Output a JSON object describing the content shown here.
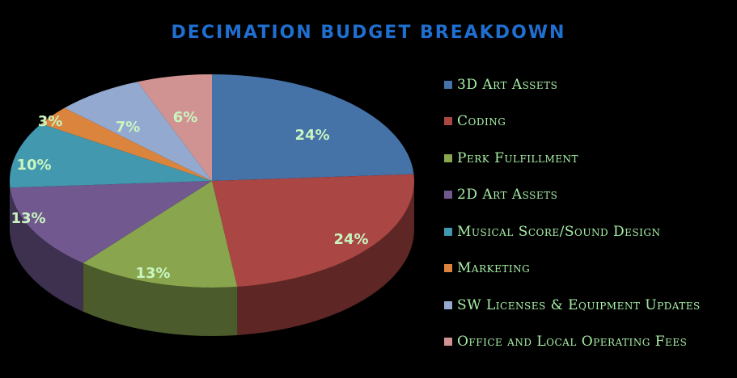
{
  "chart_data": {
    "type": "pie",
    "title": "Decimation Budget Breakdown",
    "style": "3d-pie",
    "legend_position": "right",
    "categories": [
      "3D Art Assets",
      "Coding",
      "Perk Fulfillment",
      "2D Art Assets",
      "Musical Score/Sound Design",
      "Marketing",
      "SW Licenses & Equipment Updates",
      "Office and Local Operating Fees"
    ],
    "values": [
      24,
      24,
      13,
      13,
      10,
      3,
      7,
      6
    ],
    "labels": [
      "24%",
      "24%",
      "13%",
      "13%",
      "10%",
      "3%",
      "7%",
      "6%"
    ],
    "colors": [
      "#4572a7",
      "#aa4643",
      "#89a54e",
      "#71588f",
      "#4198af",
      "#db843d",
      "#93a9cf",
      "#d19392"
    ]
  },
  "legend": {
    "items": [
      {
        "label": "3D Art Assets",
        "color": "#4572a7"
      },
      {
        "label": "Coding",
        "color": "#aa4643"
      },
      {
        "label": "Perk Fulfillment",
        "color": "#89a54e"
      },
      {
        "label": "2D Art Assets",
        "color": "#71588f"
      },
      {
        "label": "Musical Score/Sound Design",
        "color": "#4198af"
      },
      {
        "label": "Marketing",
        "color": "#db843d"
      },
      {
        "label": "SW Licenses & Equipment Updates",
        "color": "#93a9cf"
      },
      {
        "label": "Office and Local Operating Fees",
        "color": "#d19392"
      }
    ]
  }
}
